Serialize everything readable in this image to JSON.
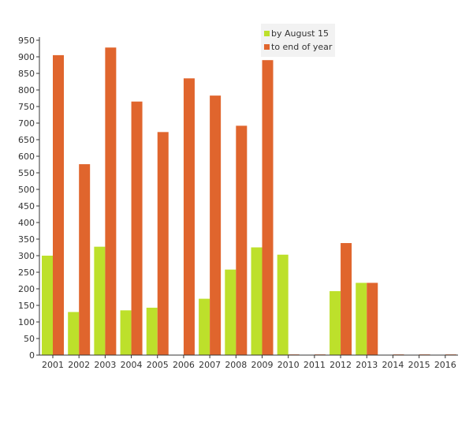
{
  "chart_data": {
    "type": "bar",
    "categories": [
      "2001",
      "2002",
      "2003",
      "2004",
      "2005",
      "2006",
      "2007",
      "2008",
      "2009",
      "2010",
      "2011",
      "2012",
      "2013",
      "2014",
      "2015",
      "2016"
    ],
    "series": [
      {
        "name": "by August 15",
        "color": "#bde02b",
        "values": [
          300,
          130,
          327,
          135,
          143,
          0,
          170,
          258,
          325,
          303,
          0,
          193,
          218,
          0,
          0,
          0
        ]
      },
      {
        "name": "to end of year",
        "color": "#e0652d",
        "values": [
          905,
          576,
          928,
          765,
          673,
          835,
          783,
          692,
          890,
          2,
          2,
          338,
          218,
          2,
          2,
          2
        ]
      }
    ],
    "y_ticks": [
      "0",
      "50",
      "100",
      "150",
      "200",
      "250",
      "300",
      "350",
      "400",
      "450",
      "500",
      "550",
      "600",
      "650",
      "700",
      "750",
      "800",
      "850",
      "900",
      "950"
    ],
    "ylim": [
      0,
      950
    ],
    "grid": false,
    "legend_position": "top-right"
  }
}
